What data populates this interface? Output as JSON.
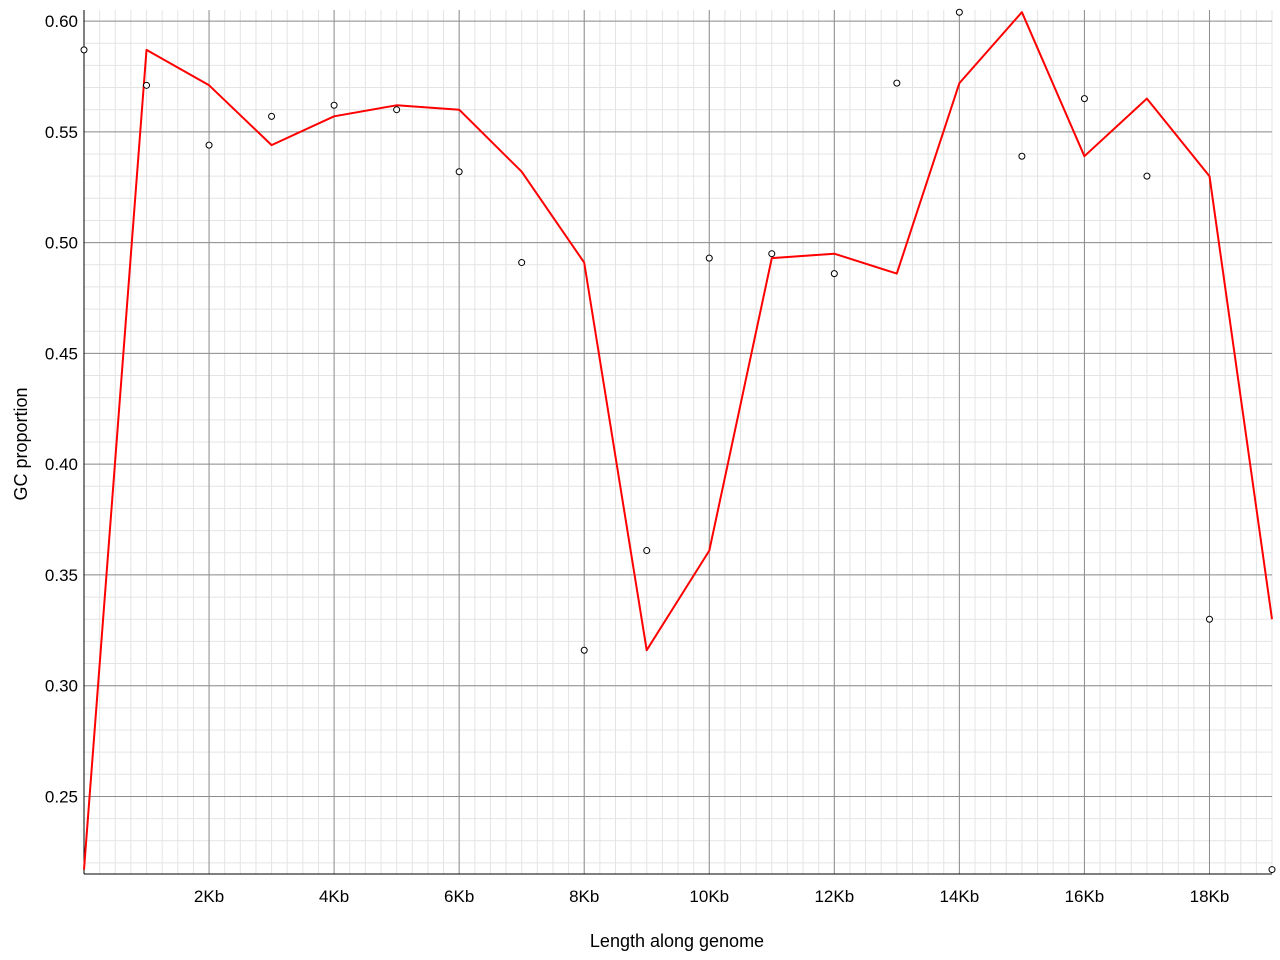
{
  "chart_data": {
    "type": "line",
    "title": "",
    "xlabel": "Length along genome",
    "ylabel": "GC proportion",
    "xlim": [
      0,
      19000
    ],
    "ylim": [
      0.215,
      0.605
    ],
    "grid": true,
    "x_ticks": [
      {
        "value": 2000,
        "label": "2Kb"
      },
      {
        "value": 4000,
        "label": "4Kb"
      },
      {
        "value": 6000,
        "label": "6Kb"
      },
      {
        "value": 8000,
        "label": "8Kb"
      },
      {
        "value": 10000,
        "label": "10Kb"
      },
      {
        "value": 12000,
        "label": "12Kb"
      },
      {
        "value": 14000,
        "label": "14Kb"
      },
      {
        "value": 16000,
        "label": "16Kb"
      },
      {
        "value": 18000,
        "label": "18Kb"
      }
    ],
    "y_ticks": [
      {
        "value": 0.25,
        "label": "0.25"
      },
      {
        "value": 0.3,
        "label": "0.30"
      },
      {
        "value": 0.35,
        "label": "0.35"
      },
      {
        "value": 0.4,
        "label": "0.40"
      },
      {
        "value": 0.45,
        "label": "0.45"
      },
      {
        "value": 0.5,
        "label": "0.50"
      },
      {
        "value": 0.55,
        "label": "0.55"
      },
      {
        "value": 0.6,
        "label": "0.60"
      }
    ],
    "series": [
      {
        "style": "points",
        "color": "#000000",
        "x": [
          0,
          1000,
          2000,
          3000,
          4000,
          5000,
          6000,
          7000,
          8000,
          9000,
          10000,
          11000,
          12000,
          13000,
          14000,
          15000,
          16000,
          17000,
          18000,
          19000
        ],
        "values": [
          0.587,
          0.571,
          0.544,
          0.557,
          0.562,
          0.56,
          0.532,
          0.491,
          0.316,
          0.361,
          0.493,
          0.495,
          0.486,
          0.572,
          0.604,
          0.539,
          0.565,
          0.53,
          0.33,
          0.217
        ]
      },
      {
        "style": "line",
        "color": "#ff0000",
        "x": [
          0,
          1000,
          2000,
          3000,
          4000,
          5000,
          6000,
          7000,
          8000,
          9000,
          10000,
          11000,
          12000,
          13000,
          14000,
          15000,
          16000,
          17000,
          18000,
          19000
        ],
        "values": [
          0.217,
          0.587,
          0.571,
          0.544,
          0.557,
          0.562,
          0.56,
          0.532,
          0.491,
          0.316,
          0.361,
          0.493,
          0.495,
          0.486,
          0.572,
          0.604,
          0.539,
          0.565,
          0.53,
          0.33
        ]
      }
    ]
  }
}
